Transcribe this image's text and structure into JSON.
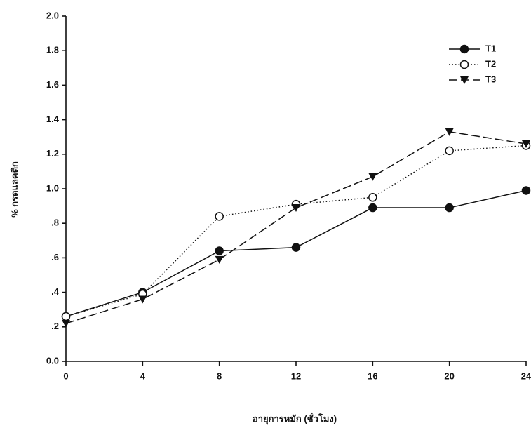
{
  "chart_data": {
    "type": "line",
    "x_label": "อายุการหมัก (ชั่วโมง)",
    "y_label": "% กรดแลคติก",
    "x": [
      0,
      4,
      8,
      12,
      16,
      20,
      24
    ],
    "xlim": [
      0,
      24
    ],
    "xticks": [
      0,
      4,
      8,
      12,
      16,
      20,
      24
    ],
    "ylim": [
      0,
      2.0
    ],
    "yticks": [
      {
        "value": 0,
        "label": "0.0"
      },
      {
        "value": 0.2,
        "label": ".2"
      },
      {
        "value": 0.4,
        "label": ".4"
      },
      {
        "value": 0.6,
        "label": ".6"
      },
      {
        "value": 0.8,
        "label": ".8"
      },
      {
        "value": 1.0,
        "label": "1.0"
      },
      1.2,
      1.4,
      1.6,
      1.8,
      {
        "value": 2.0,
        "label": "2.0"
      }
    ],
    "legend": "upper right",
    "series": [
      {
        "name": "T1",
        "color": "#111111",
        "marker": "filled-circle",
        "line_style": "solid",
        "values": [
          0.26,
          0.4,
          0.64,
          0.66,
          0.89,
          0.89,
          0.99
        ]
      },
      {
        "name": "T2",
        "color": "#111111",
        "marker": "open-circle",
        "line_style": "dotted",
        "values": [
          0.26,
          0.39,
          0.84,
          0.91,
          0.95,
          1.22,
          1.25
        ]
      },
      {
        "name": "T3",
        "color": "#111111",
        "marker": "triangle-down",
        "line_style": "dashed",
        "values": [
          0.22,
          0.36,
          0.59,
          0.89,
          1.07,
          1.33,
          1.26
        ]
      }
    ]
  }
}
